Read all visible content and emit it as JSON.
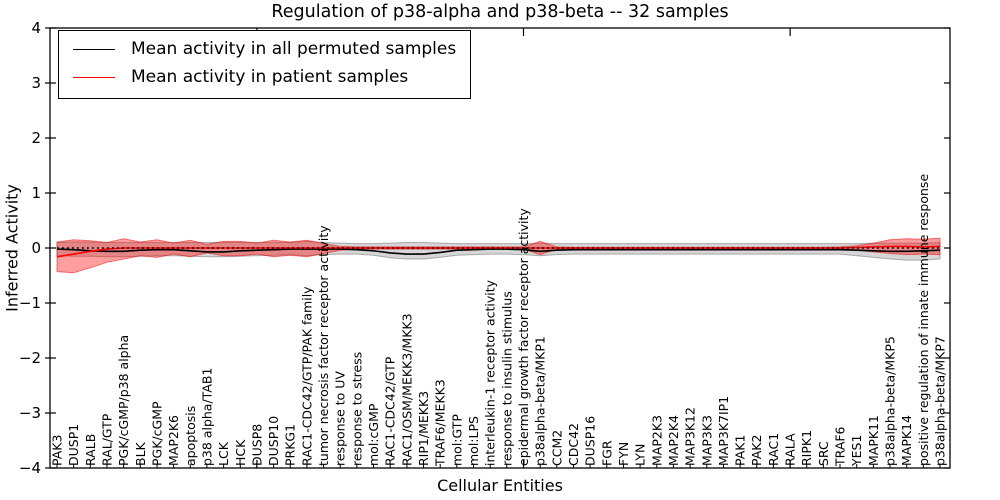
{
  "figure": {
    "background": "#ffffff"
  },
  "chart_data": {
    "type": "line",
    "title": "Regulation of p38-alpha and p38-beta -- 32 samples",
    "xlabel": "Cellular Entities",
    "ylabel": "Inferred Activity",
    "ylim": [
      -4,
      4
    ],
    "y_ticks": [
      -4,
      -3,
      -2,
      -1,
      0,
      1,
      2,
      3,
      4
    ],
    "y_tick_labels": [
      "−4",
      "−3",
      "−2",
      "−1",
      "0",
      "1",
      "2",
      "3",
      "4"
    ],
    "grid": false,
    "legend_position": "upper left",
    "zero_reference_line": {
      "value": 0,
      "style": "dotted",
      "color": "#000000"
    },
    "top_tick_indices": [
      12,
      28,
      44
    ],
    "categories": [
      "PAK3",
      "DUSP1",
      "RALB",
      "RAL/GTP",
      "PGK/cGMP/p38 alpha",
      "BLK",
      "PGK/cGMP",
      "MAP2K6",
      "apoptosis",
      "p38 alpha/TAB1",
      "LCK",
      "HCK",
      "DUSP8",
      "DUSP10",
      "PRKG1",
      "RAC1-CDC42/GTP/PAK family",
      "tumor necrosis factor receptor activity",
      "response to UV",
      "response to stress",
      "mol:cGMP",
      "RAC1-CDC42/GTP",
      "RAC1/OSM/MEKK3/MKK3",
      "RIP1/MEKK3",
      "TRAF6/MEKK3",
      "mol:GTP",
      "mol:LPS",
      "interleukin-1 receptor activity",
      "response to insulin stimulus",
      "epidermal growth factor receptor activity",
      "p38alpha-beta/MKP1",
      "CCM2",
      "CDC42",
      "DUSP16",
      "FGR",
      "FYN",
      "LYN",
      "MAP2K3",
      "MAP2K4",
      "MAP3K12",
      "MAP3K3",
      "MAP3K7IP1",
      "PAK1",
      "PAK2",
      "RAC1",
      "RALA",
      "RIPK1",
      "SRC",
      "TRAF6",
      "YES1",
      "MAPK11",
      "p38alpha-beta/MKP5",
      "MAPK14",
      "positive regulation of innate immune response",
      "p38alpha-beta/MKP7"
    ],
    "series": [
      {
        "name": "Mean activity in all permuted samples",
        "color": "#000000",
        "band_fill": "rgba(0,0,0,0.16)",
        "band_edge": "rgba(90,90,90,0.45)",
        "values": [
          -0.02,
          -0.03,
          -0.05,
          -0.06,
          -0.06,
          -0.04,
          -0.03,
          -0.03,
          -0.05,
          -0.07,
          -0.07,
          -0.05,
          -0.04,
          -0.03,
          -0.02,
          -0.02,
          -0.02,
          -0.02,
          -0.03,
          -0.05,
          -0.09,
          -0.11,
          -0.11,
          -0.08,
          -0.04,
          -0.03,
          -0.02,
          -0.02,
          -0.03,
          -0.06,
          -0.04,
          -0.03,
          -0.03,
          -0.03,
          -0.03,
          -0.03,
          -0.03,
          -0.03,
          -0.03,
          -0.03,
          -0.03,
          -0.03,
          -0.03,
          -0.03,
          -0.03,
          -0.03,
          -0.03,
          -0.03,
          -0.04,
          -0.05,
          -0.06,
          -0.06,
          -0.05,
          -0.04
        ],
        "band_upper": [
          0.1,
          0.11,
          0.11,
          0.1,
          0.1,
          0.1,
          0.1,
          0.1,
          0.1,
          0.1,
          0.1,
          0.1,
          0.1,
          0.1,
          0.1,
          0.12,
          0.1,
          0.09,
          0.08,
          0.08,
          0.09,
          0.1,
          0.1,
          0.09,
          0.08,
          0.08,
          0.08,
          0.08,
          0.08,
          0.09,
          0.08,
          0.08,
          0.08,
          0.08,
          0.08,
          0.08,
          0.08,
          0.08,
          0.08,
          0.08,
          0.08,
          0.08,
          0.08,
          0.08,
          0.08,
          0.08,
          0.08,
          0.08,
          0.08,
          0.09,
          0.09,
          0.09,
          0.09,
          0.1
        ],
        "band_lower": [
          -0.14,
          -0.15,
          -0.15,
          -0.16,
          -0.16,
          -0.15,
          -0.14,
          -0.14,
          -0.15,
          -0.16,
          -0.16,
          -0.15,
          -0.14,
          -0.13,
          -0.12,
          -0.14,
          -0.12,
          -0.11,
          -0.11,
          -0.13,
          -0.18,
          -0.2,
          -0.2,
          -0.17,
          -0.13,
          -0.12,
          -0.11,
          -0.11,
          -0.12,
          -0.14,
          -0.12,
          -0.11,
          -0.11,
          -0.11,
          -0.11,
          -0.11,
          -0.11,
          -0.11,
          -0.11,
          -0.11,
          -0.11,
          -0.11,
          -0.11,
          -0.11,
          -0.11,
          -0.11,
          -0.11,
          -0.11,
          -0.14,
          -0.17,
          -0.2,
          -0.22,
          -0.22,
          -0.2
        ]
      },
      {
        "name": "Mean activity in patient samples",
        "color": "#ff0000",
        "band_fill": "rgba(255,0,0,0.38)",
        "band_edge": "rgba(225,0,0,0.5)",
        "values": [
          -0.16,
          -0.11,
          -0.06,
          -0.02,
          0,
          0,
          0,
          0,
          0,
          0,
          0,
          0,
          0,
          0,
          0,
          0,
          0,
          0,
          0,
          0,
          0,
          0,
          0,
          0,
          0,
          0,
          0,
          0,
          0,
          0,
          0,
          0,
          0,
          0,
          0,
          0,
          0,
          0,
          0,
          0,
          0,
          0,
          0,
          0,
          0,
          0,
          0,
          0,
          0.01,
          0.02,
          0.03,
          0.03,
          0.02,
          0.03
        ],
        "band_upper": [
          0.11,
          0.15,
          0.13,
          0.1,
          0.17,
          0.11,
          0.15,
          0.09,
          0.14,
          0.07,
          0.12,
          0.12,
          0.09,
          0.14,
          0.11,
          0.14,
          0.08,
          0.03,
          0.02,
          0.02,
          0.02,
          0.02,
          0.02,
          0.02,
          0.02,
          0.02,
          0.02,
          0.02,
          0.02,
          0.12,
          0.02,
          0.015,
          0.015,
          0.015,
          0.015,
          0.015,
          0.015,
          0.015,
          0.015,
          0.015,
          0.015,
          0.015,
          0.015,
          0.015,
          0.015,
          0.015,
          0.015,
          0.02,
          0.04,
          0.09,
          0.15,
          0.17,
          0.16,
          0.18
        ],
        "band_lower": [
          -0.43,
          -0.45,
          -0.36,
          -0.26,
          -0.2,
          -0.14,
          -0.17,
          -0.11,
          -0.16,
          -0.09,
          -0.14,
          -0.14,
          -0.11,
          -0.16,
          -0.13,
          -0.16,
          -0.1,
          -0.04,
          -0.02,
          -0.02,
          -0.02,
          -0.02,
          -0.02,
          -0.02,
          -0.02,
          -0.02,
          -0.02,
          -0.02,
          -0.02,
          -0.12,
          -0.02,
          -0.015,
          -0.015,
          -0.015,
          -0.015,
          -0.015,
          -0.015,
          -0.015,
          -0.015,
          -0.015,
          -0.015,
          -0.015,
          -0.015,
          -0.015,
          -0.015,
          -0.015,
          -0.015,
          -0.02,
          -0.04,
          -0.07,
          -0.1,
          -0.12,
          -0.11,
          -0.12
        ]
      }
    ]
  }
}
